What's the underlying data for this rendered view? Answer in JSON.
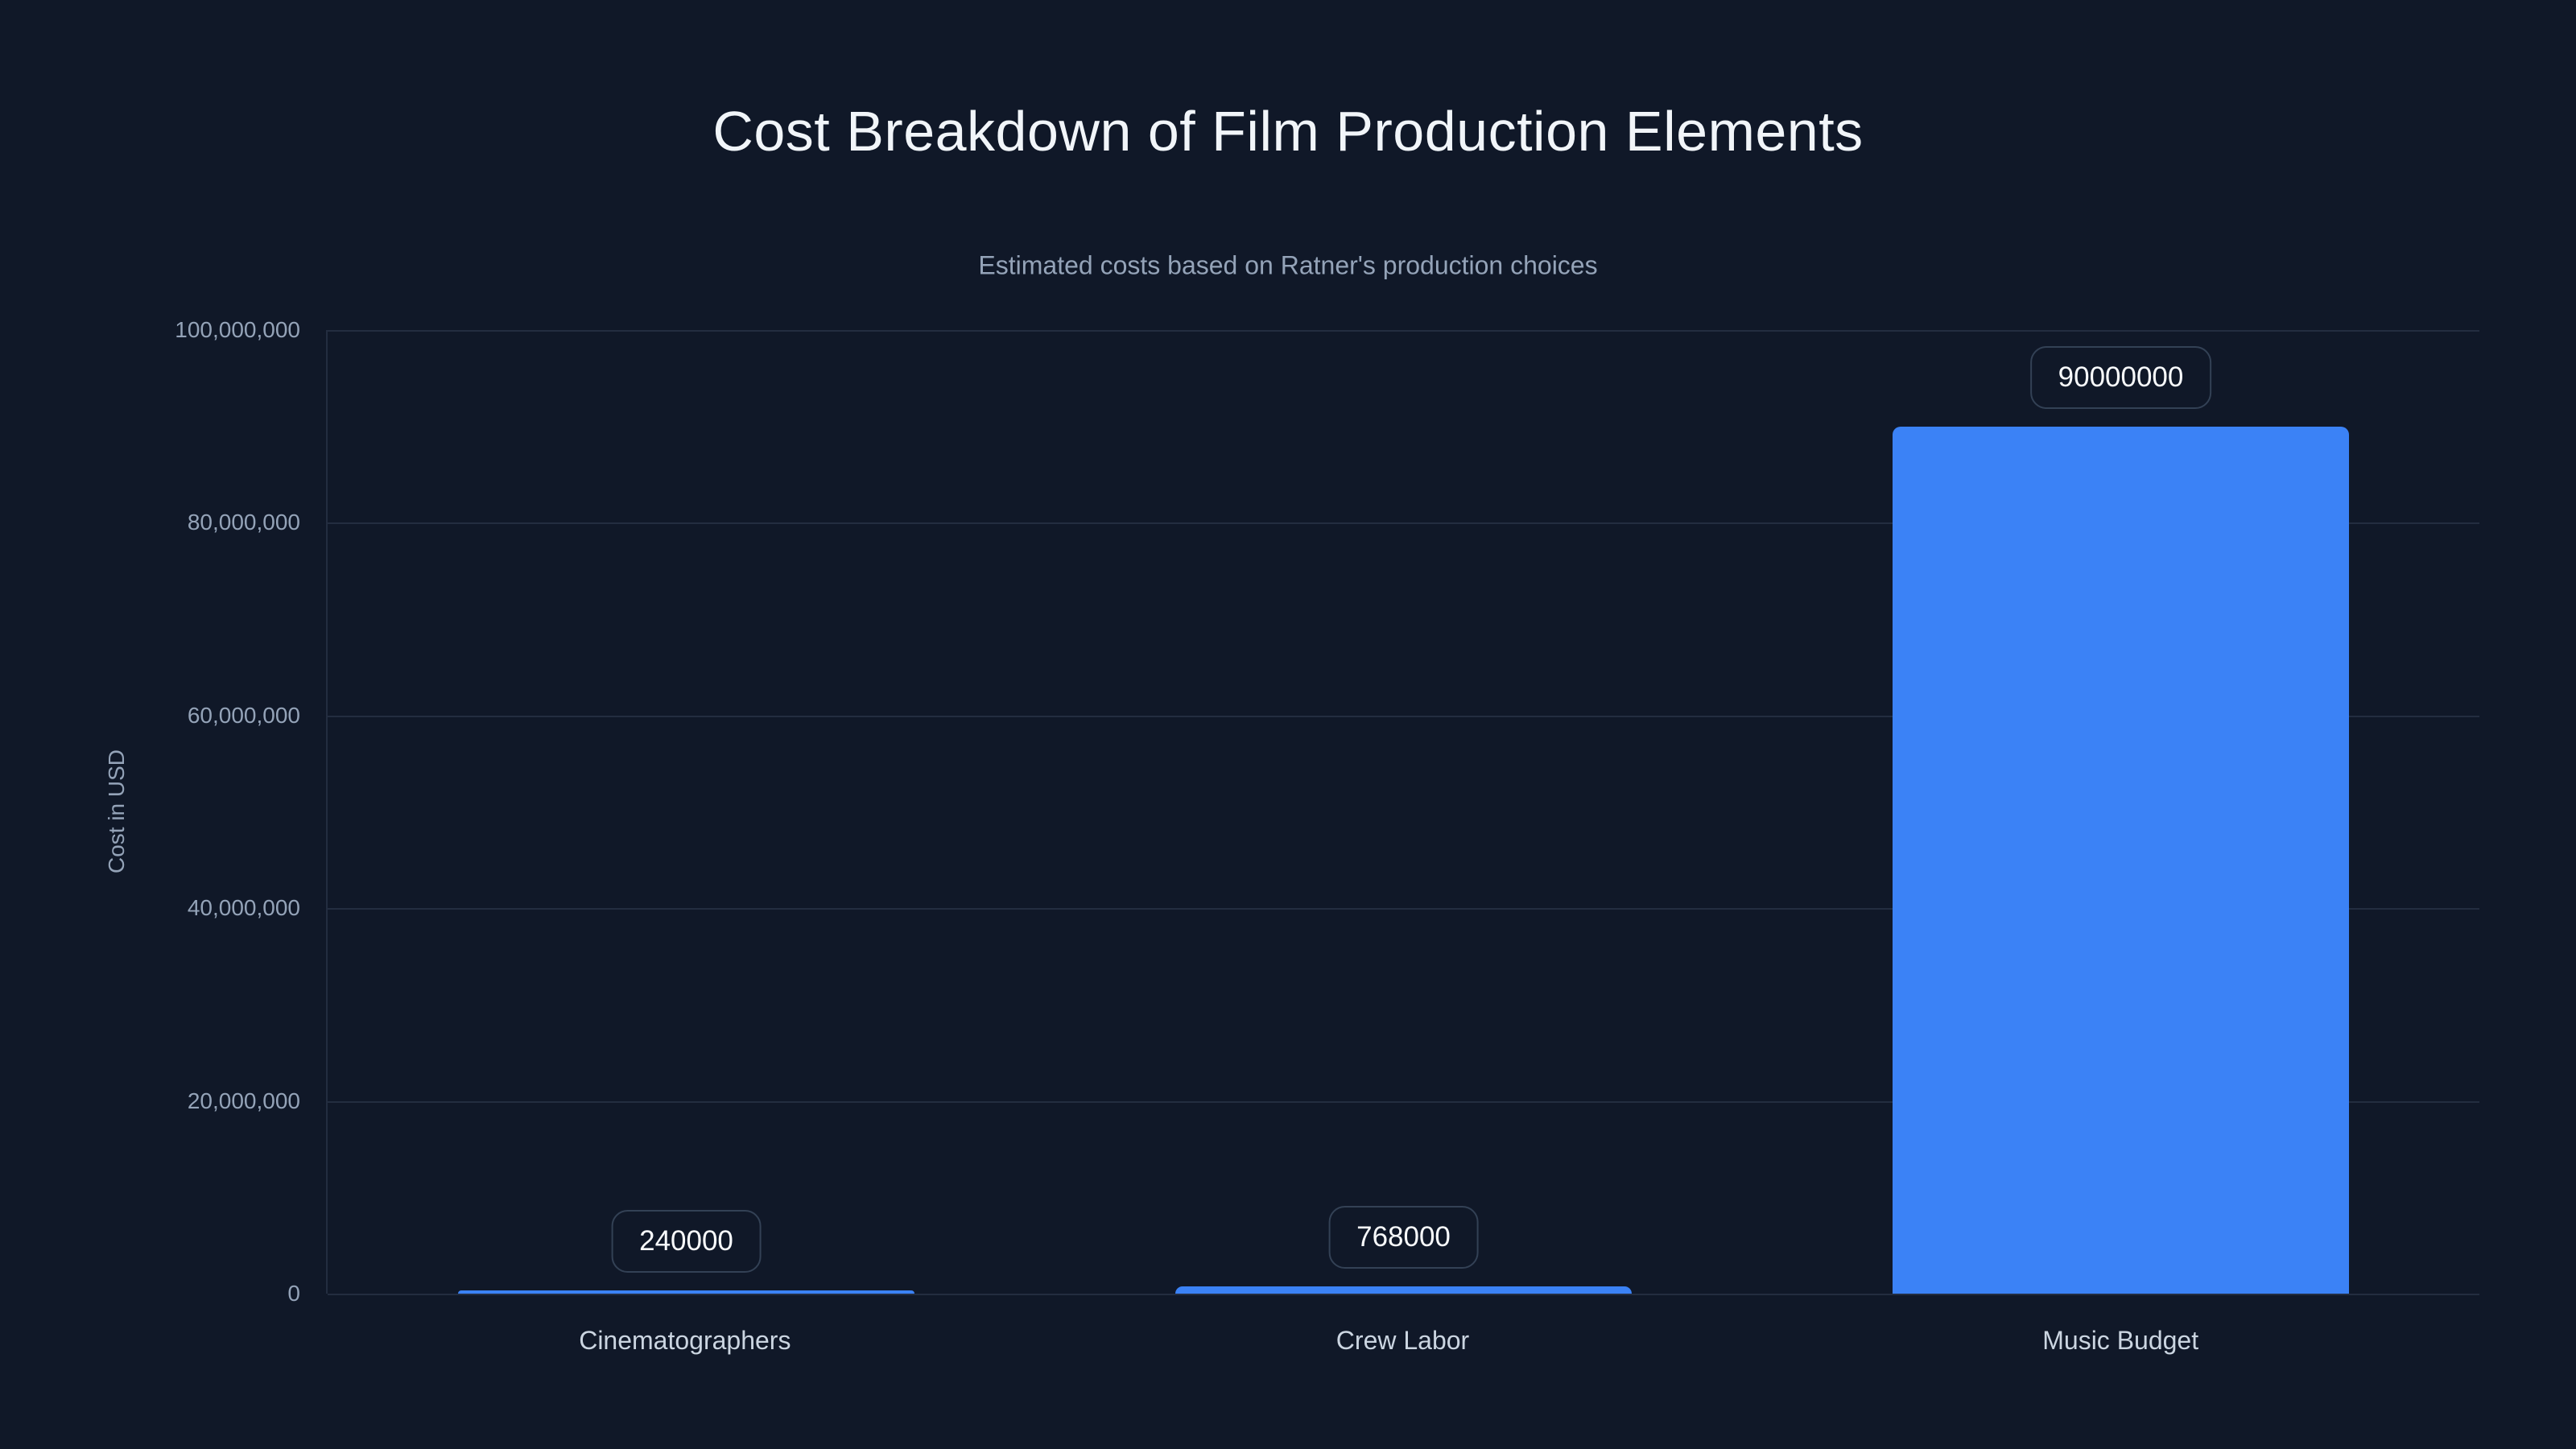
{
  "title": "Cost Breakdown of Film Production Elements",
  "subtitle": "Estimated costs based on Ratner's production choices",
  "chart_data": {
    "type": "bar",
    "title": "Cost Breakdown of Film Production Elements",
    "subtitle": "Estimated costs based on Ratner's production choices",
    "categories": [
      "Cinematographers",
      "Crew Labor",
      "Music Budget"
    ],
    "values": [
      240000,
      768000,
      90000000
    ],
    "bar_labels": [
      "240000",
      "768000",
      "90000000"
    ],
    "xlabel": "",
    "ylabel": "Cost in USD",
    "ylim": [
      0,
      100000000
    ],
    "yticks_top_to_bottom": [
      "100,000,000",
      "80,000,000",
      "60,000,000",
      "40,000,000",
      "20,000,000",
      "0"
    ],
    "grid": true,
    "legend": false,
    "layout": {
      "bar_label_style": "bordered-badge-above-bar",
      "legend_position": "none"
    },
    "colors": {
      "background": "#101828",
      "bar": "#3b82f6",
      "gridline": "#232d40",
      "tick_text": "#94a3b8",
      "x_label_text": "#cbd5e1",
      "title_text": "#f1f5f9",
      "subtitle_text": "#94a3b8",
      "badge_border": "#334155",
      "badge_text": "#f8fafc"
    }
  }
}
